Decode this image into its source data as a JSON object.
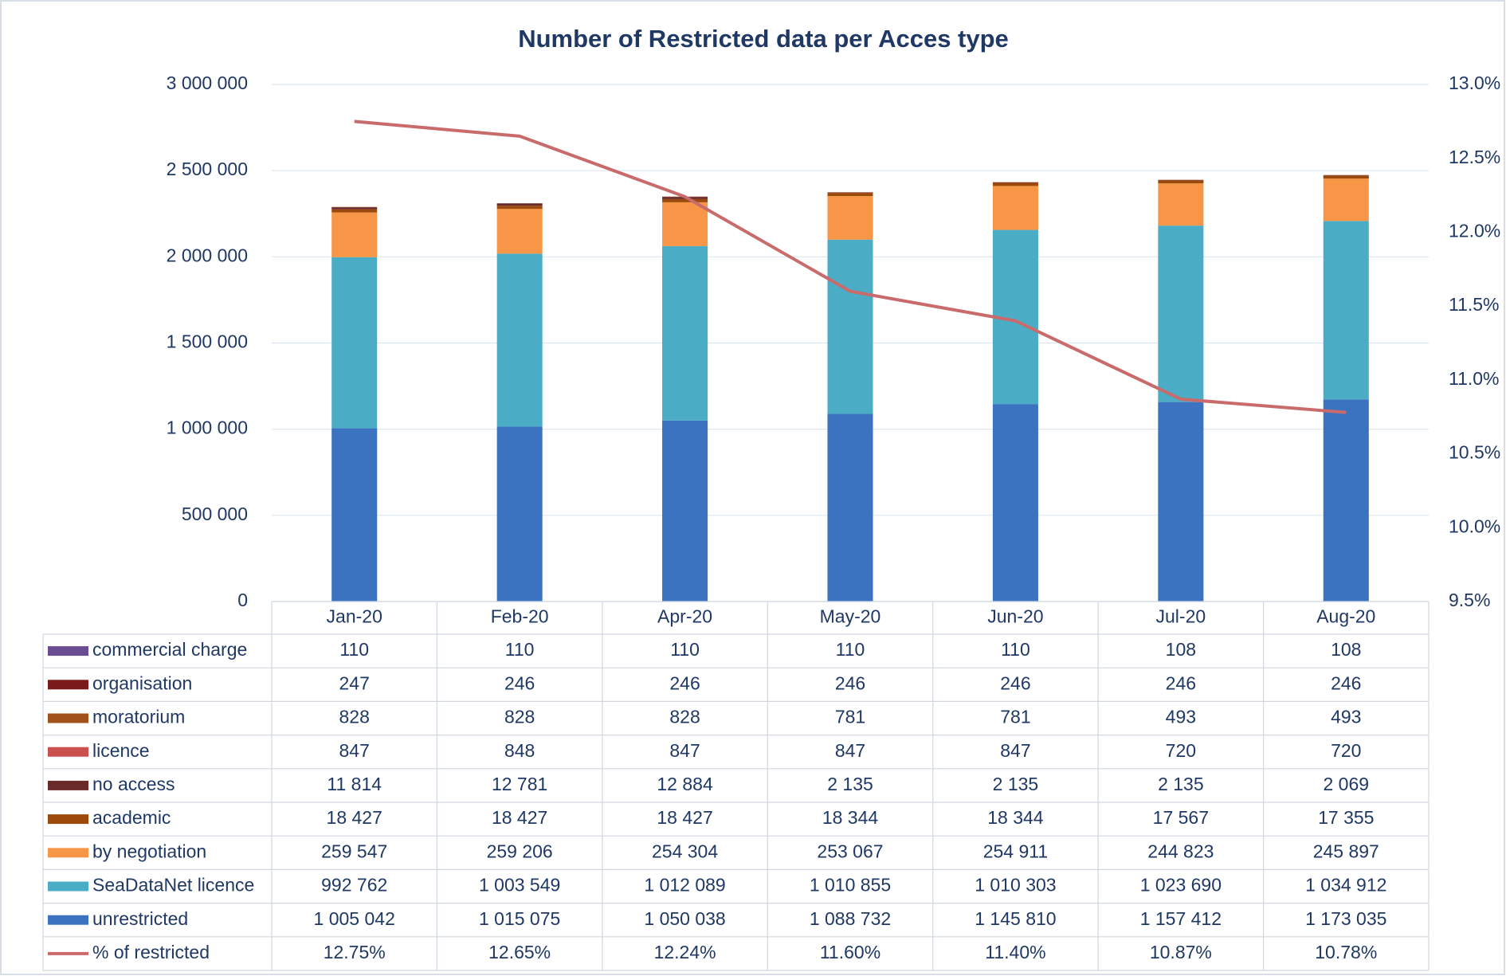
{
  "chart_data": {
    "type": "bar",
    "stacked": true,
    "title": "Number of Restricted data per Acces type",
    "categories": [
      "Jan-20",
      "Feb-20",
      "Apr-20",
      "May-20",
      "Jun-20",
      "Jul-20",
      "Aug-20"
    ],
    "series": [
      {
        "name": "commercial charge",
        "type": "bar",
        "color": "#6a4c93",
        "values": [
          110,
          110,
          110,
          110,
          110,
          108,
          108
        ]
      },
      {
        "name": "organisation",
        "type": "bar",
        "color": "#7b1a1a",
        "values": [
          247,
          246,
          246,
          246,
          246,
          246,
          246
        ]
      },
      {
        "name": "moratorium",
        "type": "bar",
        "color": "#a0521a",
        "values": [
          828,
          828,
          828,
          781,
          781,
          493,
          493
        ]
      },
      {
        "name": "licence",
        "type": "bar",
        "color": "#c9504f",
        "values": [
          847,
          848,
          847,
          847,
          847,
          720,
          720
        ]
      },
      {
        "name": "no access",
        "type": "bar",
        "color": "#6b2a2a",
        "values": [
          11814,
          12781,
          12884,
          2135,
          2135,
          2135,
          2069
        ],
        "value_labels": [
          "11 814",
          "12 781",
          "12 884",
          "2 135",
          "2 135",
          "2 135",
          "2 069"
        ]
      },
      {
        "name": "academic",
        "type": "bar",
        "color": "#9c4a0b",
        "values": [
          18427,
          18427,
          18427,
          18344,
          18344,
          17567,
          17355
        ],
        "value_labels": [
          "18 427",
          "18 427",
          "18 427",
          "18 344",
          "18 344",
          "17 567",
          "17 355"
        ]
      },
      {
        "name": "by negotiation",
        "type": "bar",
        "color": "#f79646",
        "values": [
          259547,
          259206,
          254304,
          253067,
          254911,
          244823,
          245897
        ],
        "value_labels": [
          "259 547",
          "259 206",
          "254 304",
          "253 067",
          "254 911",
          "244 823",
          "245 897"
        ]
      },
      {
        "name": "SeaDataNet licence",
        "type": "bar",
        "color": "#4bacc6",
        "values": [
          992762,
          1003549,
          1012089,
          1010855,
          1010303,
          1023690,
          1034912
        ],
        "value_labels": [
          "992 762",
          "1 003 549",
          "1 012 089",
          "1 010 855",
          "1 010 303",
          "1 023 690",
          "1 034 912"
        ]
      },
      {
        "name": "unrestricted",
        "type": "bar",
        "color": "#3b73c0",
        "values": [
          1005042,
          1015075,
          1050038,
          1088732,
          1145810,
          1157412,
          1173035
        ],
        "value_labels": [
          "1 005 042",
          "1 015 075",
          "1 050 038",
          "1 088 732",
          "1 145 810",
          "1 157 412",
          "1 173 035"
        ]
      },
      {
        "name": "% of restricted",
        "type": "line",
        "axis": "y2",
        "color": "#c96a6b",
        "values": [
          12.75,
          12.65,
          12.24,
          11.6,
          11.4,
          10.87,
          10.78
        ],
        "value_labels": [
          "12.75%",
          "12.65%",
          "12.24%",
          "11.60%",
          "11.40%",
          "10.87%",
          "10.78%"
        ]
      }
    ],
    "ylim": [
      0,
      3000000
    ],
    "yticks": [
      0,
      {
        "value": 500000,
        "label": "500 000"
      },
      {
        "value": 1000000,
        "label": "1 000 000"
      },
      {
        "value": 1500000,
        "label": "1 500 000"
      },
      {
        "value": 2000000,
        "label": "2 000 000"
      },
      {
        "value": 2500000,
        "label": "2 500 000"
      },
      {
        "value": 3000000,
        "label": "3 000 000"
      }
    ],
    "y2lim": [
      9.5,
      13
    ],
    "y2ticks": [
      {
        "value": 9.5,
        "label": "9.5%"
      },
      {
        "value": 10,
        "label": "10.0%"
      },
      {
        "value": 10.5,
        "label": "10.5%"
      },
      {
        "value": 11,
        "label": "11.0%"
      },
      {
        "value": 11.5,
        "label": "11.5%"
      },
      {
        "value": 12,
        "label": "12.0%"
      },
      {
        "value": 12.5,
        "label": "12.5%"
      },
      {
        "value": 13,
        "label": "13.0%"
      }
    ],
    "grid": true
  }
}
